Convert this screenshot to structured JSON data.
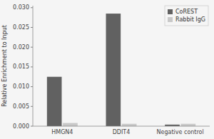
{
  "chart_data": {
    "type": "bar",
    "y_label": "Relative Enrichment to Input",
    "categories": [
      "HMGN4",
      "DDIT4",
      "Negative control"
    ],
    "series": [
      {
        "name": "CoREST",
        "color": "#616161",
        "values": [
          0.0125,
          0.0285,
          0.0004
        ]
      },
      {
        "name": "Rabbit IgG",
        "color": "#c8c8c8",
        "values": [
          0.0008,
          0.0006,
          0.0006
        ]
      }
    ],
    "ylim": [
      0,
      0.0305
    ],
    "yticks": [
      {
        "value": 0.0,
        "label": "0.000"
      },
      {
        "value": 0.005,
        "label": "0.005"
      },
      {
        "value": 0.01,
        "label": "0.010"
      },
      {
        "value": 0.015,
        "label": "0.015"
      },
      {
        "value": 0.02,
        "label": "0.020"
      },
      {
        "value": 0.025,
        "label": "0.025"
      },
      {
        "value": 0.03,
        "label": "0.030"
      }
    ],
    "grid": false,
    "legend": "upper-right"
  }
}
